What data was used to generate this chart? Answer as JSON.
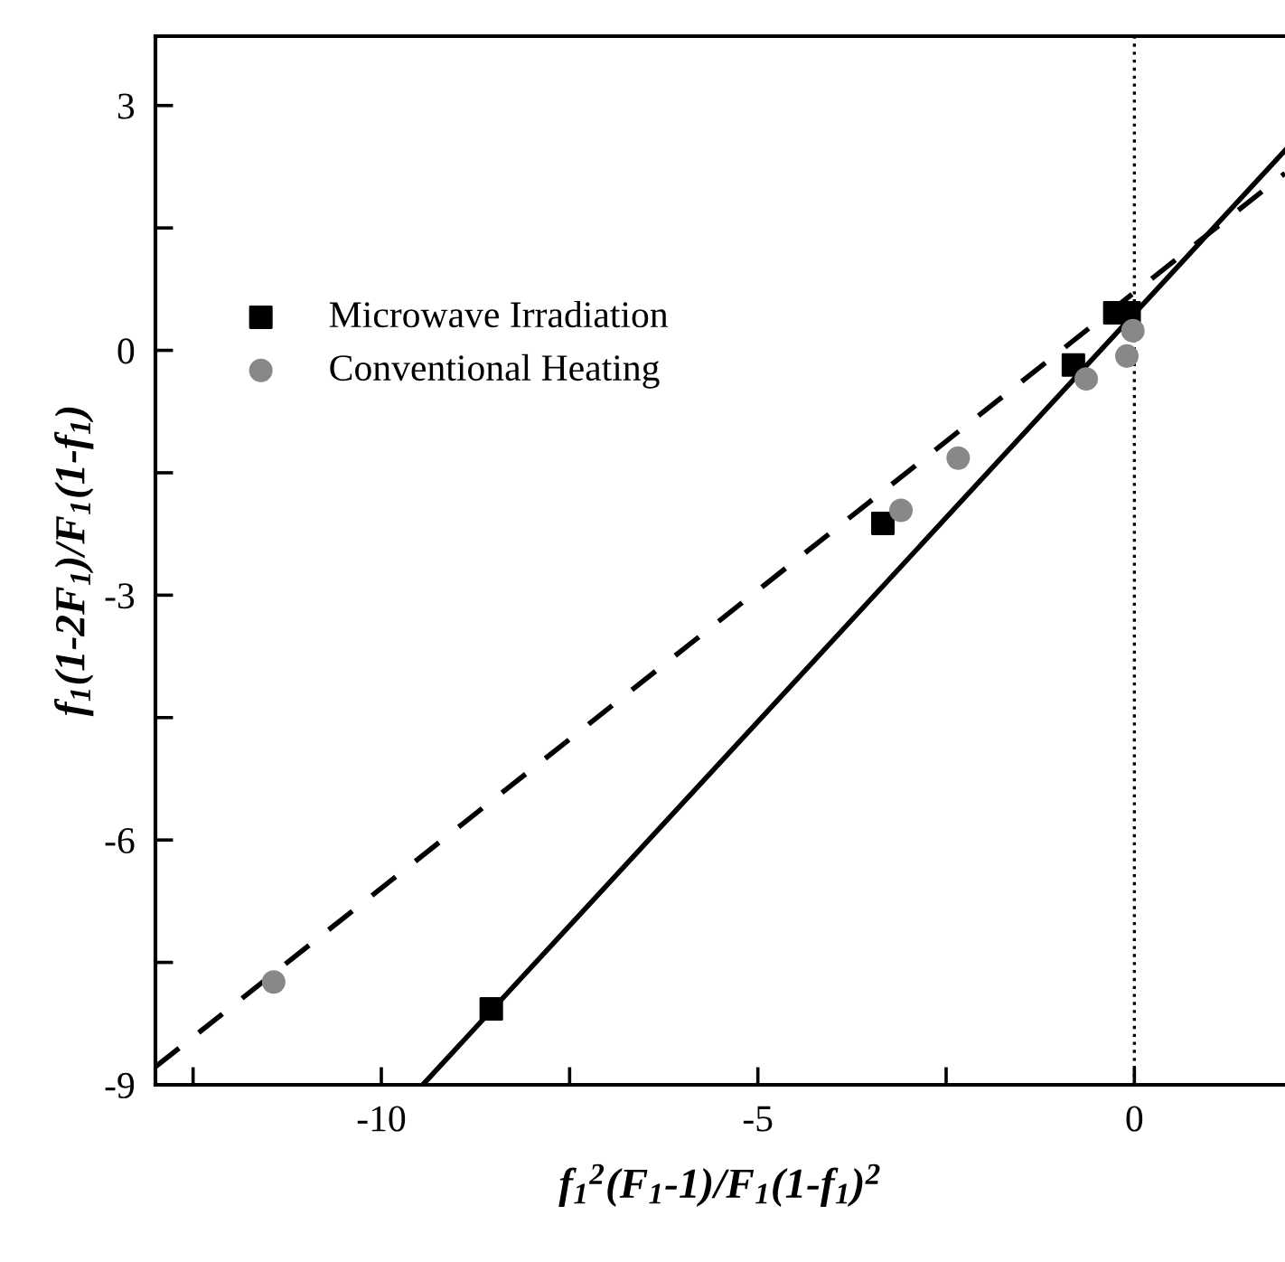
{
  "chart_data": {
    "type": "scatter",
    "xlabel": "f$_{1}$$^{2}$(F$_{1}$-1)/F$_{1}$(1-f$_{1}$)$^{2}$",
    "ylabel": "f$_{1}$(1-2F$_{1}$)/F$_{1}$(1-f$_{1}$)",
    "xlim": [
      -13,
      2
    ],
    "ylim": [
      -9,
      3.85
    ],
    "xticks": [
      {
        "value": -12.5,
        "label": null
      },
      -10,
      {
        "value": -7.5,
        "label": null
      },
      -5,
      {
        "value": -2.5,
        "label": null
      },
      0
    ],
    "yticks": [
      -9,
      {
        "value": -7.5,
        "label": null
      },
      -6,
      {
        "value": -4.5,
        "label": null
      },
      -3,
      {
        "value": -1.5,
        "label": null
      },
      0,
      {
        "value": 1.5,
        "label": null
      },
      3
    ],
    "series": [
      {
        "name": "Microwave Irradiation",
        "marker": "square",
        "color": "#000000",
        "x": [
          -8.54,
          -3.34,
          -0.81,
          -0.26,
          -0.07
        ],
        "values": [
          -8.07,
          -2.12,
          -0.18,
          0.46,
          0.46
        ]
      },
      {
        "name": "Conventional Heating",
        "marker": "circle",
        "color": "#888888",
        "x": [
          -11.43,
          -3.1,
          -2.34,
          -0.64,
          -0.1,
          -0.02
        ],
        "values": [
          -7.74,
          -1.96,
          -1.32,
          -0.35,
          -0.07,
          0.24
        ]
      },
      {
        "type": "line",
        "line_style": "solid",
        "color": "#000000",
        "x": [
          -9.45,
          2
        ],
        "values": [
          -9,
          2.45
        ]
      },
      {
        "type": "line",
        "line_style": "dashed",
        "color": "#000000",
        "x": [
          -13,
          2
        ],
        "values": [
          -8.78,
          2.17
        ]
      }
    ],
    "ref_lines": [
      {
        "axis": "x",
        "value": 0,
        "line_style": "dotted",
        "color": "#000000"
      }
    ],
    "legend": "top left",
    "grid": false
  }
}
